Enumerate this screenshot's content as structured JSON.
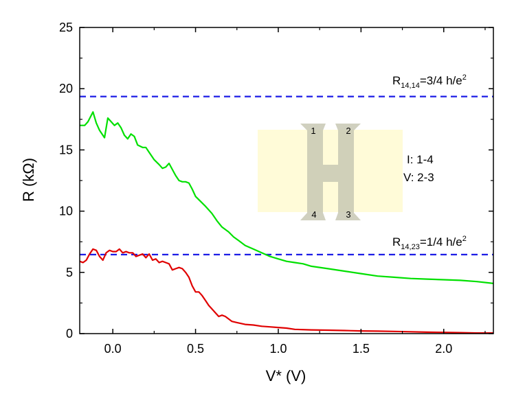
{
  "chart_data": {
    "type": "line",
    "title": "",
    "xlabel": "V* (V)",
    "ylabel": "R (kΩ)",
    "xlim": [
      -0.2,
      2.3
    ],
    "ylim": [
      0,
      25
    ],
    "xticks": [
      0.0,
      0.5,
      1.0,
      1.5,
      2.0
    ],
    "xtick_labels": [
      "0.0",
      "0.5",
      "1.0",
      "1.5",
      "2.0"
    ],
    "yticks": [
      0,
      5,
      10,
      15,
      20,
      25
    ],
    "ytick_labels": [
      "0",
      "5",
      "10",
      "15",
      "20",
      "25"
    ],
    "grid": false,
    "series": [
      {
        "name": "green",
        "color": "#00e000",
        "x": [
          -0.2,
          -0.17,
          -0.15,
          -0.12,
          -0.1,
          -0.08,
          -0.05,
          -0.03,
          -0.01,
          0.01,
          0.03,
          0.05,
          0.07,
          0.09,
          0.11,
          0.13,
          0.15,
          0.18,
          0.2,
          0.22,
          0.25,
          0.28,
          0.3,
          0.32,
          0.34,
          0.36,
          0.38,
          0.4,
          0.42,
          0.44,
          0.46,
          0.48,
          0.5,
          0.53,
          0.56,
          0.6,
          0.63,
          0.66,
          0.7,
          0.73,
          0.76,
          0.8,
          0.85,
          0.9,
          0.95,
          1.0,
          1.05,
          1.1,
          1.15,
          1.2,
          1.3,
          1.4,
          1.5,
          1.6,
          1.7,
          1.8,
          1.9,
          2.0,
          2.1,
          2.2,
          2.3
        ],
        "y": [
          17.0,
          17.0,
          17.3,
          18.1,
          17.2,
          16.6,
          16.0,
          17.6,
          17.3,
          17.0,
          17.2,
          16.8,
          16.2,
          15.9,
          16.3,
          16.1,
          15.4,
          15.2,
          15.2,
          14.8,
          14.2,
          13.8,
          13.5,
          13.6,
          13.9,
          13.4,
          12.9,
          12.5,
          12.4,
          12.4,
          12.3,
          11.8,
          11.2,
          10.8,
          10.4,
          9.8,
          9.2,
          8.7,
          8.3,
          7.9,
          7.6,
          7.2,
          6.9,
          6.6,
          6.3,
          6.1,
          5.9,
          5.8,
          5.7,
          5.5,
          5.3,
          5.1,
          4.9,
          4.7,
          4.6,
          4.5,
          4.45,
          4.4,
          4.35,
          4.25,
          4.1
        ]
      },
      {
        "name": "red",
        "color": "#e00000",
        "x": [
          -0.2,
          -0.18,
          -0.16,
          -0.14,
          -0.12,
          -0.1,
          -0.08,
          -0.06,
          -0.04,
          -0.02,
          0.0,
          0.02,
          0.04,
          0.06,
          0.08,
          0.1,
          0.12,
          0.14,
          0.16,
          0.18,
          0.2,
          0.22,
          0.24,
          0.26,
          0.28,
          0.3,
          0.32,
          0.34,
          0.36,
          0.38,
          0.4,
          0.42,
          0.44,
          0.46,
          0.48,
          0.5,
          0.52,
          0.54,
          0.56,
          0.58,
          0.6,
          0.62,
          0.64,
          0.66,
          0.68,
          0.7,
          0.72,
          0.75,
          0.8,
          0.85,
          0.9,
          0.95,
          1.0,
          1.05,
          1.1,
          1.2,
          1.3,
          1.4,
          1.5,
          1.6,
          1.7,
          1.8,
          1.9,
          2.0,
          2.1,
          2.2,
          2.3
        ],
        "y": [
          5.9,
          5.8,
          6.0,
          6.5,
          6.9,
          6.8,
          6.3,
          6.0,
          6.6,
          6.8,
          6.7,
          6.7,
          6.9,
          6.6,
          6.7,
          6.6,
          6.6,
          6.3,
          6.4,
          6.5,
          6.2,
          6.5,
          6.0,
          6.1,
          5.8,
          5.9,
          5.8,
          5.7,
          5.2,
          5.3,
          5.4,
          5.3,
          5.0,
          4.6,
          3.9,
          3.4,
          3.4,
          3.1,
          2.7,
          2.3,
          2.0,
          1.7,
          1.4,
          1.5,
          1.4,
          1.2,
          1.0,
          0.9,
          0.75,
          0.7,
          0.6,
          0.55,
          0.5,
          0.45,
          0.35,
          0.3,
          0.28,
          0.25,
          0.22,
          0.2,
          0.18,
          0.15,
          0.12,
          0.1,
          0.08,
          0.05,
          0.05
        ]
      },
      {
        "name": "R_14,14 = 3/4 h/e²",
        "color": "#1a1ae6",
        "style": "dashed",
        "x": [
          -0.2,
          2.3
        ],
        "y": [
          19.36,
          19.36
        ]
      },
      {
        "name": "R_14,23 = 1/4 h/e²",
        "color": "#1a1ae6",
        "style": "dashed",
        "x": [
          -0.2,
          2.3
        ],
        "y": [
          6.45,
          6.45
        ]
      }
    ],
    "annotations": {
      "r1414": {
        "main": "R",
        "sub": "14,14",
        "rest": "=3/4 h/e",
        "sup": "2",
        "y": 19.36
      },
      "r1423": {
        "main": "R",
        "sub": "14,23",
        "rest": "=1/4 h/e",
        "sup": "2",
        "y": 6.45
      }
    },
    "inset": {
      "pins": [
        "1",
        "2",
        "4",
        "3"
      ],
      "current_label": "I: 1-4",
      "voltage_label": "V: 2-3",
      "fill_color": "#fffbd8",
      "hbar_color": "#c8c8b4"
    }
  }
}
